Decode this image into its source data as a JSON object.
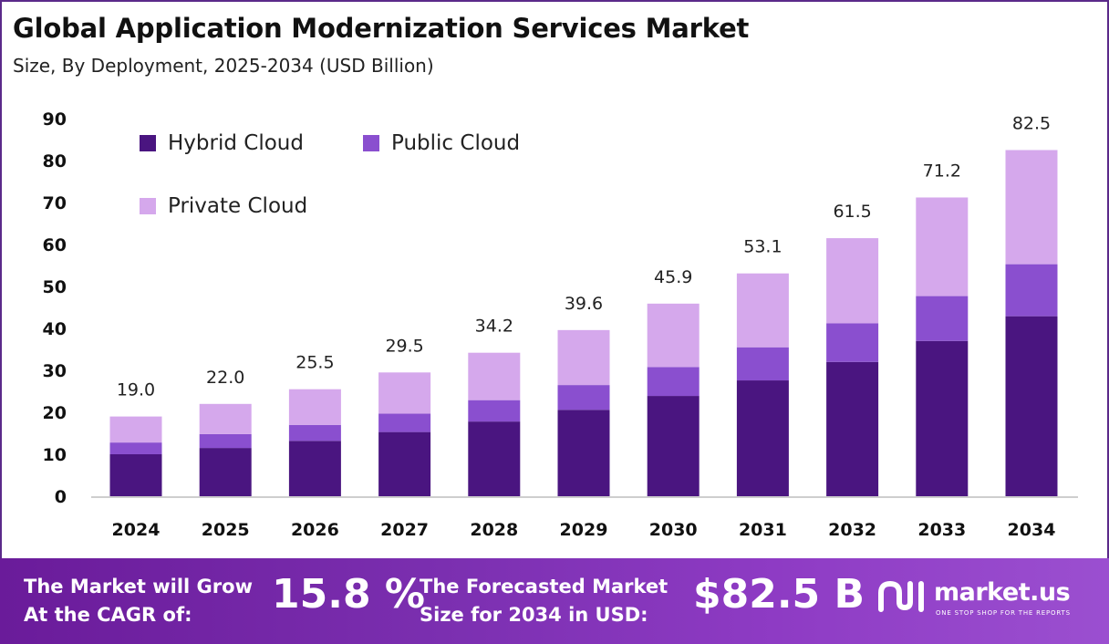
{
  "header": {
    "title": "Global Application Modernization Services Market",
    "subtitle": "Size, By Deployment, 2025-2034 (USD Billion)"
  },
  "chart_data": {
    "type": "bar",
    "stacked": true,
    "categories": [
      "2024",
      "2025",
      "2026",
      "2027",
      "2028",
      "2029",
      "2030",
      "2031",
      "2032",
      "2033",
      "2034"
    ],
    "series": [
      {
        "name": "Hybrid Cloud",
        "color": "#4a1580",
        "values": [
          10.0,
          11.5,
          13.2,
          15.3,
          17.8,
          20.6,
          23.9,
          27.6,
          32.0,
          37.0,
          42.9
        ]
      },
      {
        "name": "Public Cloud",
        "color": "#8a4fcf",
        "values": [
          2.8,
          3.3,
          3.8,
          4.4,
          5.1,
          5.9,
          6.9,
          7.9,
          9.2,
          10.7,
          12.4
        ]
      },
      {
        "name": "Private Cloud",
        "color": "#d5a8ec",
        "values": [
          6.2,
          7.2,
          8.5,
          9.8,
          11.3,
          13.1,
          15.1,
          17.6,
          20.3,
          23.5,
          27.2
        ]
      }
    ],
    "totals": [
      "19.0",
      "22.0",
      "25.5",
      "29.5",
      "34.2",
      "39.6",
      "45.9",
      "53.1",
      "61.5",
      "71.2",
      "82.5"
    ],
    "ylim": [
      0,
      90
    ],
    "yticks": [
      0,
      10,
      20,
      30,
      40,
      50,
      60,
      70,
      80,
      90
    ],
    "grid": false,
    "legend_position": "top-left"
  },
  "footer": {
    "cagr_line1": "The Market will Grow",
    "cagr_line2": "At the CAGR of:",
    "cagr_value": "15.8 %",
    "forecast_line1": "The Forecasted Market",
    "forecast_line2": "Size for 2034 in USD:",
    "forecast_value": "$82.5 B",
    "brand_name": "market.us",
    "brand_tagline": "ONE STOP SHOP FOR THE REPORTS"
  }
}
